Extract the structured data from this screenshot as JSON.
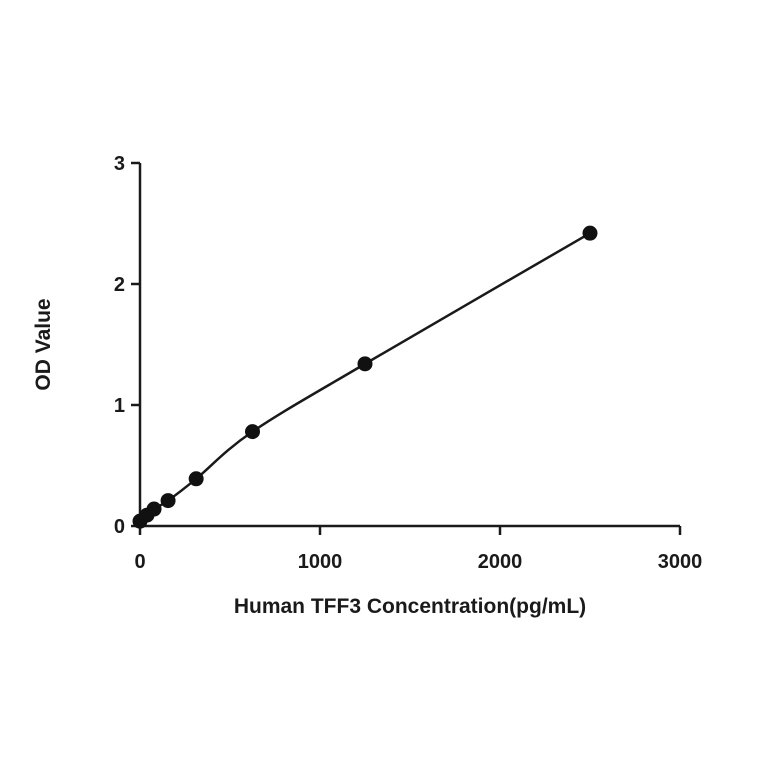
{
  "chart_data": {
    "type": "line",
    "title": "",
    "xlabel": "Human TFF3 Concentration(pg/mL)",
    "ylabel": "OD Value",
    "xlim": [
      0,
      3000
    ],
    "ylim": [
      0,
      3
    ],
    "xticks": [
      0,
      1000,
      2000,
      3000
    ],
    "yticks": [
      0,
      1,
      2,
      3
    ],
    "grid": false,
    "legend": "none",
    "series": [
      {
        "x": [
          0,
          39,
          78,
          156,
          312,
          625,
          1250,
          2500
        ],
        "y": [
          0.04,
          0.09,
          0.14,
          0.21,
          0.39,
          0.78,
          1.34,
          2.42
        ],
        "markers": true,
        "fit_line": true
      }
    ],
    "colors": {
      "line": "#1a1a1a",
      "marker": "#111111",
      "axis": "#1a1a1a"
    }
  }
}
